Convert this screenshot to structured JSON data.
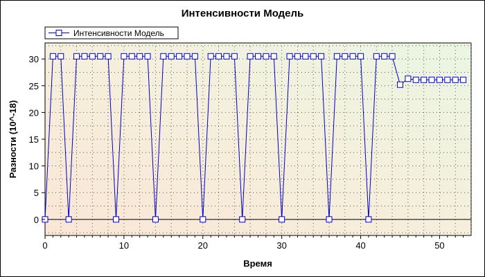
{
  "chart_data": {
    "type": "line",
    "title": "Интенсивности Модель",
    "xlabel": "Время",
    "ylabel": "Разности (10^-18)",
    "xlim": [
      0,
      54
    ],
    "ylim": [
      -3,
      33
    ],
    "xticks": [
      0,
      10,
      20,
      30,
      40,
      50
    ],
    "yticks": [
      0,
      5,
      10,
      15,
      20,
      25,
      30
    ],
    "grid": true,
    "legend_position": "top-left",
    "series": [
      {
        "name": "Интенсивности Модель",
        "color": "#0000cc",
        "marker": "square",
        "x": [
          0,
          1,
          2,
          3,
          4,
          5,
          6,
          7,
          8,
          9,
          10,
          11,
          12,
          13,
          14,
          15,
          16,
          17,
          18,
          19,
          20,
          21,
          22,
          23,
          24,
          25,
          26,
          27,
          28,
          29,
          30,
          31,
          32,
          33,
          34,
          35,
          36,
          37,
          38,
          39,
          40,
          41,
          42,
          43,
          44,
          45,
          46,
          47,
          48,
          49,
          50,
          51,
          52,
          53
        ],
        "y": [
          0,
          30.5,
          30.5,
          0,
          30.5,
          30.5,
          30.5,
          30.5,
          30.5,
          0,
          30.5,
          30.5,
          30.5,
          30.5,
          0,
          30.5,
          30.5,
          30.5,
          30.5,
          30.5,
          0,
          30.5,
          30.5,
          30.5,
          30.5,
          0,
          30.5,
          30.5,
          30.5,
          30.5,
          0,
          30.5,
          30.5,
          30.5,
          30.5,
          30.5,
          0,
          30.5,
          30.5,
          30.5,
          30.5,
          0,
          30.5,
          30.5,
          30.5,
          25.2,
          26.3,
          26.1,
          26.1,
          26.1,
          26.1,
          26.1,
          26.1,
          26.1
        ]
      }
    ]
  }
}
